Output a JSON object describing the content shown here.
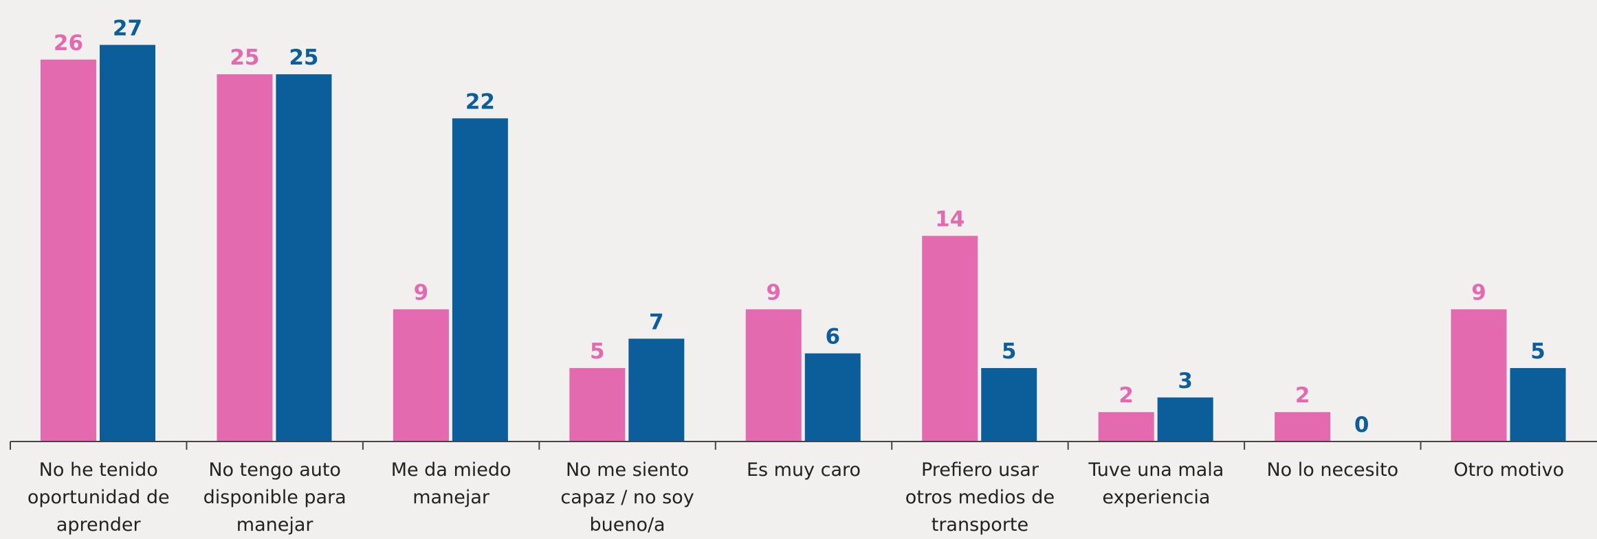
{
  "chart_data": {
    "type": "bar",
    "categories": [
      "No he tenido oportunidad de aprender",
      "No tengo auto disponible para manejar",
      "Me da miedo manejar",
      "No me siento capaz / no soy bueno/a",
      "Es muy caro",
      "Prefiero usar otros medios de transporte",
      "Tuve una mala experiencia",
      "No lo necesito",
      "Otro motivo"
    ],
    "series": [
      {
        "color": "#e36aae",
        "values": [
          26,
          25,
          9,
          5,
          9,
          14,
          2,
          2,
          9
        ]
      },
      {
        "color": "#0b5e99",
        "values": [
          27,
          25,
          22,
          7,
          6,
          5,
          3,
          0,
          5
        ]
      }
    ],
    "ylim": [
      0,
      28
    ]
  }
}
